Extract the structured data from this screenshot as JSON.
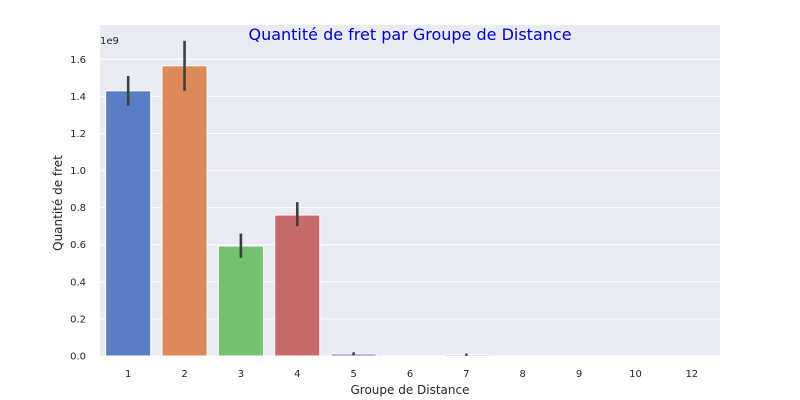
{
  "chart_data": {
    "type": "bar",
    "title": "Quantité de fret par Groupe de Distance",
    "xlabel": "Groupe de Distance",
    "ylabel": "Quantité de fret",
    "y_offset_label": "1e9",
    "y_scale": 1000000000,
    "categories": [
      "1",
      "2",
      "3",
      "4",
      "5",
      "6",
      "7",
      "8",
      "9",
      "10",
      "12"
    ],
    "values": [
      1.43,
      1.565,
      0.593,
      0.76,
      0.011,
      0.0,
      0.007,
      0.0,
      0.0,
      0.0,
      0.0
    ],
    "error_low": [
      1.35,
      1.43,
      0.53,
      0.7,
      0.003,
      0.0,
      0.001,
      0.0,
      0.0,
      0.0,
      0.0
    ],
    "error_high": [
      1.51,
      1.7,
      0.66,
      0.83,
      0.02,
      0.0,
      0.013,
      0.0,
      0.0,
      0.0,
      0.0
    ],
    "ylim": [
      0,
      1.785
    ],
    "yticks": [
      0.0,
      0.2,
      0.4,
      0.6,
      0.8,
      1.0,
      1.2,
      1.4,
      1.6
    ],
    "ytick_labels": [
      "0.0",
      "0.2",
      "0.4",
      "0.6",
      "0.8",
      "1.0",
      "1.2",
      "1.4",
      "1.6"
    ],
    "grid": true,
    "colors": {
      "bars": [
        "#5a7ec3",
        "#dc8a5a",
        "#74c170",
        "#c76a6a",
        "#8b73b8",
        "#8f735f",
        "#d48fc0",
        "#8c8c8c",
        "#c9b85e",
        "#72bcd0",
        "#5a7ec3"
      ],
      "background": "#eaeaf2",
      "grid": "#ffffff",
      "error_bar": "#3f3f3f",
      "title": "#0000cc"
    }
  }
}
